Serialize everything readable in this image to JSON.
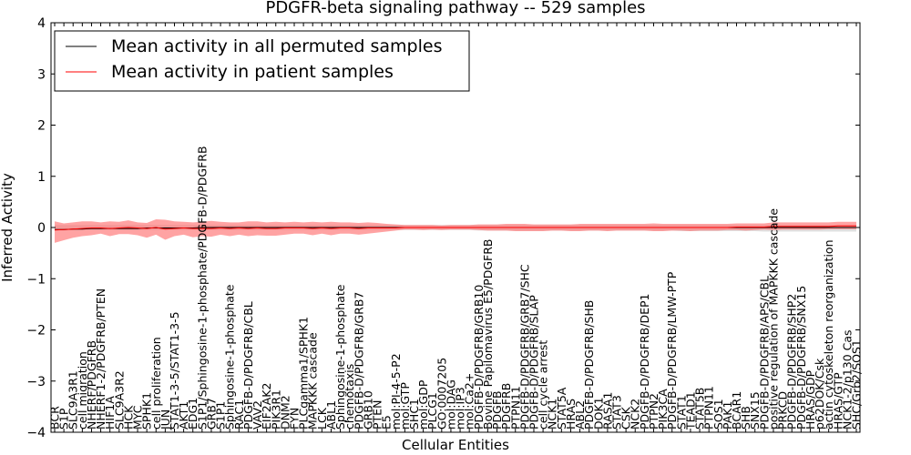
{
  "chart_data": {
    "type": "line",
    "title": "PDGFR-beta signaling pathway -- 529 samples",
    "xlabel": "Cellular Entities",
    "ylabel": "Inferred Activity",
    "ylim": [
      -4,
      4
    ],
    "yticks": [
      "−4",
      "−3",
      "−2",
      "−1",
      "0",
      "1",
      "2",
      "3",
      "4"
    ],
    "grid": false,
    "legend_position": "top-left",
    "categories": [
      "BCR",
      "S1P",
      "SLC9A3R1",
      "cell migration",
      "NHERF/PDGFRB",
      "NHERF1-2/PDGFRB/PTEN",
      "HIF1A",
      "SLC9A3R2",
      "HCK",
      "MYC",
      "SPHK1",
      "cell proliferation",
      "JUN",
      "STAT1-3-5/STAT1-3-5",
      "AKT1",
      "EDG1",
      "S1P1/Sphingosine-1-phosphate/PDGFB-D/PDGFRB",
      "GRB7",
      "S1P1",
      "Sphingosine-1-phosphate",
      "RAC1",
      "PDGFB-D/PDGFRB/CBL",
      "VAV2",
      "EIF2AK2",
      "PIK3R1",
      "DNM2",
      "FYN",
      "PLCgamma1/SPHK1",
      "MAPKKK cascade",
      "LCK",
      "ABL1",
      "Sphingosine-1-phosphate",
      "chemotaxis",
      "PDGFB-D/PDGFRB/GRB7",
      "GRB10",
      "PTEN",
      "E5",
      "mol:PI-4-5-P2",
      "mol:GTP",
      "SHC1",
      "mol:GDP",
      "PLCG1",
      "GO:0007205",
      "mol:DAG",
      "mol:IP3",
      "mol:Ca2+",
      "PDGFB-D/PDGFRB/GRB10",
      "Bovine Papilomavirus E5/PDGFRB",
      "PDGFB",
      "PDGFRB",
      "PTPN11",
      "PDGFB-D/PDGFRB/GRB7/SHC",
      "PDGFB-D/PDGFRB/SLAP",
      "cell cycle arrest",
      "NCK1",
      "STAT5A",
      "HRAS",
      "ABL2",
      "PDGFB-D/PDGFRB/SHB",
      "DOK1",
      "RASA1",
      "STAT3",
      "CSK",
      "NCK2",
      "PDGFB-D/PDGFRB/DEP1",
      "PTPN2",
      "PIK3CA",
      "PDGFB-D/PDGFRB/LMW-PTP",
      "STAT1",
      "TEAD1",
      "STAT5B",
      "PTPN11",
      "SOS1",
      "PAK1",
      "BCAR1",
      "SHB",
      "SNX15",
      "PDGFB-D/PDGFRB/APS/CBL",
      "positive regulation of MAPKKK cascade",
      "PRKCD",
      "PDGFB-D/PDGFRB/SHP2",
      "PDGFB-D/PDGFRB/SNX15",
      "HRAS/GDP",
      "p62DOK/Csk",
      "actin cytoskeleton reorganization",
      "HRAS/GTP",
      "NCK1-2/p130 Cas",
      "SHC/Grb2/SOS1"
    ],
    "series": [
      {
        "name": "Mean activity in all permuted samples",
        "color": "#000000",
        "values": [
          -0.04,
          -0.04,
          -0.03,
          -0.03,
          -0.02,
          -0.02,
          -0.02,
          -0.02,
          -0.02,
          -0.02,
          -0.01,
          -0.01,
          -0.01,
          -0.01,
          -0.01,
          -0.01,
          0.0,
          0.0,
          0.0,
          0.0,
          0.0,
          0.0,
          0.0,
          0.0,
          0.0,
          0.0,
          0.0,
          0.0,
          0.0,
          0.0,
          0.0,
          0.0,
          0.0,
          0.0,
          0.0,
          0.0,
          0.0,
          0.0,
          0.0,
          0.0,
          0.0,
          0.0,
          0.0,
          0.0,
          0.0,
          0.0,
          0.0,
          0.0,
          0.0,
          0.0,
          0.0,
          0.0,
          0.0,
          0.0,
          0.0,
          0.0,
          0.0,
          0.0,
          0.0,
          0.0,
          0.0,
          0.0,
          0.0,
          0.0,
          0.0,
          0.0,
          0.0,
          0.0,
          0.0,
          0.0,
          0.0,
          0.0,
          0.0,
          0.0,
          0.0,
          0.0,
          0.0,
          0.0,
          0.0,
          0.0,
          0.0,
          0.0,
          0.0,
          0.0,
          0.0,
          0.0,
          0.0,
          0.0
        ],
        "band_lower": [
          -0.06,
          -0.06,
          -0.05,
          -0.05,
          -0.05,
          -0.05,
          -0.05,
          -0.05,
          -0.05,
          -0.05,
          -0.05,
          -0.05,
          -0.05,
          -0.05,
          -0.05,
          -0.05,
          -0.05,
          -0.05,
          -0.05,
          -0.05,
          -0.05,
          -0.05,
          -0.05,
          -0.05,
          -0.05,
          -0.05,
          -0.05,
          -0.05,
          -0.05,
          -0.05,
          -0.05,
          -0.05,
          -0.05,
          -0.05,
          -0.05,
          -0.05,
          -0.05,
          -0.05,
          -0.05,
          -0.05,
          -0.05,
          -0.05,
          -0.05,
          -0.05,
          -0.05,
          -0.05,
          -0.06,
          -0.06,
          -0.06,
          -0.06,
          -0.06,
          -0.06,
          -0.06,
          -0.06,
          -0.06,
          -0.06,
          -0.06,
          -0.06,
          -0.06,
          -0.06,
          -0.06,
          -0.06,
          -0.06,
          -0.06,
          -0.06,
          -0.06,
          -0.06,
          -0.06,
          -0.07,
          -0.07,
          -0.07,
          -0.07,
          -0.07,
          -0.07,
          -0.07,
          -0.07,
          -0.07,
          -0.08,
          -0.08,
          -0.08,
          -0.08,
          -0.08,
          -0.08,
          -0.08,
          -0.08,
          -0.08,
          -0.08,
          -0.08
        ],
        "band_upper": [
          0.05,
          0.05,
          0.05,
          0.05,
          0.05,
          0.05,
          0.05,
          0.05,
          0.05,
          0.05,
          0.05,
          0.05,
          0.05,
          0.05,
          0.05,
          0.05,
          0.05,
          0.05,
          0.05,
          0.05,
          0.05,
          0.05,
          0.05,
          0.05,
          0.05,
          0.05,
          0.05,
          0.05,
          0.05,
          0.05,
          0.05,
          0.05,
          0.05,
          0.05,
          0.05,
          0.05,
          0.05,
          0.05,
          0.05,
          0.05,
          0.05,
          0.05,
          0.05,
          0.05,
          0.05,
          0.05,
          0.05,
          0.05,
          0.05,
          0.05,
          0.05,
          0.05,
          0.05,
          0.05,
          0.05,
          0.05,
          0.05,
          0.05,
          0.05,
          0.05,
          0.05,
          0.05,
          0.05,
          0.05,
          0.05,
          0.05,
          0.05,
          0.05,
          0.05,
          0.05,
          0.05,
          0.05,
          0.05,
          0.05,
          0.05,
          0.05,
          0.05,
          0.05,
          0.05,
          0.05,
          0.05,
          0.05,
          0.05,
          0.05,
          0.05,
          0.05,
          0.05,
          0.05
        ]
      },
      {
        "name": "Mean activity in patient samples",
        "color": "#ff0000",
        "values": [
          -0.05,
          -0.04,
          -0.03,
          -0.02,
          -0.01,
          -0.01,
          -0.02,
          -0.01,
          0.0,
          -0.01,
          -0.02,
          0.0,
          -0.03,
          -0.02,
          -0.01,
          -0.02,
          -0.02,
          -0.02,
          -0.01,
          -0.02,
          -0.01,
          -0.02,
          -0.01,
          -0.02,
          -0.02,
          -0.01,
          -0.01,
          -0.01,
          -0.02,
          -0.01,
          -0.02,
          -0.01,
          -0.01,
          -0.02,
          -0.01,
          -0.01,
          -0.01,
          -0.01,
          0.0,
          0.0,
          0.0,
          0.0,
          0.0,
          0.0,
          0.0,
          0.0,
          0.0,
          0.0,
          0.0,
          0.0,
          0.0,
          0.0,
          0.0,
          0.0,
          0.0,
          0.0,
          0.0,
          0.0,
          0.0,
          0.0,
          0.0,
          0.0,
          0.0,
          0.0,
          0.0,
          0.0,
          0.0,
          0.0,
          0.0,
          0.0,
          0.0,
          0.0,
          0.0,
          0.0,
          0.01,
          0.01,
          0.01,
          0.01,
          0.02,
          0.02,
          0.02,
          0.02,
          0.02,
          0.02,
          0.02,
          0.03,
          0.03,
          0.03
        ],
        "band_lower": [
          -0.3,
          -0.25,
          -0.2,
          -0.17,
          -0.15,
          -0.12,
          -0.17,
          -0.13,
          -0.13,
          -0.15,
          -0.2,
          -0.14,
          -0.24,
          -0.17,
          -0.14,
          -0.19,
          -0.17,
          -0.18,
          -0.14,
          -0.17,
          -0.14,
          -0.17,
          -0.15,
          -0.16,
          -0.16,
          -0.14,
          -0.12,
          -0.12,
          -0.15,
          -0.12,
          -0.15,
          -0.12,
          -0.12,
          -0.14,
          -0.12,
          -0.1,
          -0.08,
          -0.06,
          -0.04,
          -0.04,
          -0.05,
          -0.04,
          -0.05,
          -0.04,
          -0.04,
          -0.04,
          -0.05,
          -0.06,
          -0.06,
          -0.06,
          -0.07,
          -0.07,
          -0.07,
          -0.07,
          -0.06,
          -0.06,
          -0.07,
          -0.07,
          -0.06,
          -0.06,
          -0.07,
          -0.06,
          -0.06,
          -0.06,
          -0.06,
          -0.07,
          -0.07,
          -0.06,
          -0.06,
          -0.07,
          -0.06,
          -0.06,
          -0.06,
          -0.05,
          -0.05,
          -0.06,
          -0.05,
          -0.04,
          -0.05,
          -0.04,
          -0.04,
          -0.04,
          -0.04,
          -0.04,
          -0.03,
          -0.03,
          -0.03,
          -0.03
        ],
        "band_upper": [
          0.12,
          0.08,
          0.1,
          0.12,
          0.12,
          0.1,
          0.12,
          0.11,
          0.14,
          0.1,
          0.09,
          0.16,
          0.15,
          0.12,
          0.11,
          0.1,
          0.11,
          0.13,
          0.11,
          0.1,
          0.1,
          0.12,
          0.12,
          0.1,
          0.11,
          0.1,
          0.11,
          0.1,
          0.11,
          0.1,
          0.11,
          0.1,
          0.1,
          0.09,
          0.1,
          0.09,
          0.07,
          0.06,
          0.05,
          0.05,
          0.05,
          0.05,
          0.04,
          0.05,
          0.05,
          0.05,
          0.06,
          0.06,
          0.06,
          0.07,
          0.07,
          0.07,
          0.06,
          0.06,
          0.06,
          0.06,
          0.06,
          0.07,
          0.07,
          0.07,
          0.07,
          0.07,
          0.07,
          0.07,
          0.07,
          0.08,
          0.07,
          0.07,
          0.07,
          0.07,
          0.07,
          0.07,
          0.07,
          0.07,
          0.08,
          0.08,
          0.08,
          0.08,
          0.1,
          0.1,
          0.1,
          0.1,
          0.1,
          0.1,
          0.1,
          0.11,
          0.11,
          0.11
        ]
      }
    ]
  }
}
